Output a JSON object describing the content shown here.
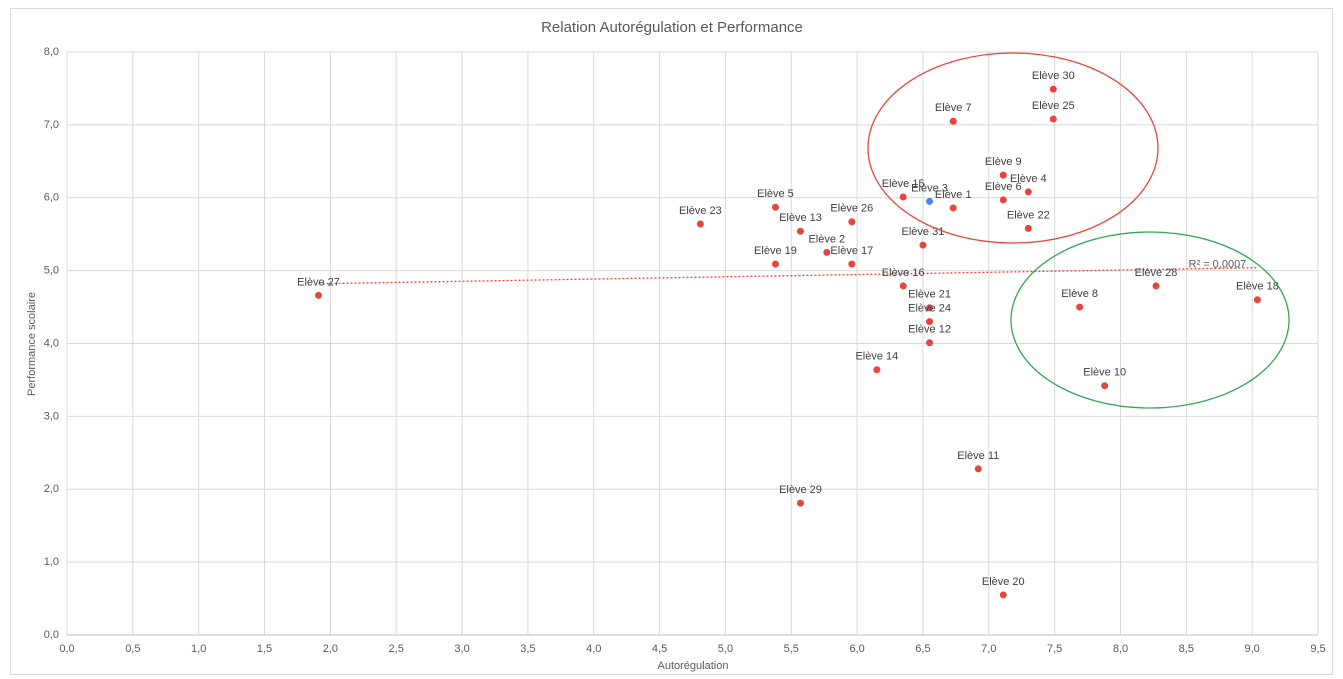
{
  "chart_data": {
    "type": "scatter",
    "title": "Relation Autorégulation et Performance",
    "x_label": "Autorégulation",
    "y_label": "Performance scolaire",
    "labels": [
      "Elève 27",
      "Elève 23",
      "Elève 5",
      "Elève 13",
      "Elève 2",
      "Elève 19",
      "Elève 17",
      "Elève 26",
      "Elève 15",
      "Elève 3",
      "Elève 1",
      "Elève 31",
      "Elève 16",
      "Elève 21",
      "Elève 24",
      "Elève 12",
      "Elève 14",
      "Elève 7",
      "Elève 9",
      "Elève 4",
      "Elève 6",
      "Elève 22",
      "Elève 30",
      "Elève 25",
      "Elève 8",
      "Elève 28",
      "Elève 18",
      "Elève 10",
      "Elève 11",
      "Elève 29",
      "Elève 20"
    ],
    "x": [
      1.91,
      4.81,
      5.38,
      5.57,
      5.77,
      5.38,
      5.96,
      5.96,
      6.35,
      6.55,
      6.73,
      6.5,
      6.35,
      6.55,
      6.55,
      6.55,
      6.15,
      6.73,
      7.11,
      7.3,
      7.11,
      7.3,
      7.49,
      7.49,
      7.69,
      8.27,
      9.04,
      7.88,
      6.92,
      5.57,
      7.11
    ],
    "values": [
      4.66,
      5.64,
      5.87,
      5.54,
      5.25,
      5.09,
      5.09,
      5.67,
      6.01,
      5.95,
      5.86,
      5.35,
      4.79,
      4.49,
      4.3,
      4.01,
      3.64,
      7.05,
      6.31,
      6.08,
      5.97,
      5.58,
      7.49,
      7.08,
      4.5,
      4.79,
      4.6,
      3.42,
      2.28,
      1.81,
      0.55
    ],
    "point_colors": [
      "#e8453c",
      "#e8453c",
      "#e8453c",
      "#e8453c",
      "#e8453c",
      "#e8453c",
      "#e8453c",
      "#e8453c",
      "#e8453c",
      "#4a86e8",
      "#e8453c",
      "#e8453c",
      "#e8453c",
      "#e8453c",
      "#e8453c",
      "#e8453c",
      "#e8453c",
      "#e8453c",
      "#e8453c",
      "#e8453c",
      "#e8453c",
      "#e8453c",
      "#e8453c",
      "#e8453c",
      "#e8453c",
      "#e8453c",
      "#e8453c",
      "#e8453c",
      "#e8453c",
      "#e8453c",
      "#e8453c"
    ],
    "trendline": {
      "x": [
        1.91,
        9.04
      ],
      "values": [
        4.82,
        5.04
      ],
      "color": "#e8453c",
      "label": "R² = 0,0007"
    },
    "xlim": [
      0,
      9.5
    ],
    "xticks": [
      {
        "value": 0,
        "label": "0,0"
      },
      {
        "value": 0.5,
        "label": "0,5"
      },
      {
        "value": 1,
        "label": "1,0"
      },
      {
        "value": 1.5,
        "label": "1,5"
      },
      {
        "value": 2,
        "label": "2,0"
      },
      {
        "value": 2.5,
        "label": "2,5"
      },
      {
        "value": 3,
        "label": "3,0"
      },
      {
        "value": 3.5,
        "label": "3,5"
      },
      {
        "value": 4,
        "label": "4,0"
      },
      {
        "value": 4.5,
        "label": "4,5"
      },
      {
        "value": 5,
        "label": "5,0"
      },
      {
        "value": 5.5,
        "label": "5,5"
      },
      {
        "value": 6,
        "label": "6,0"
      },
      {
        "value": 6.5,
        "label": "6,5"
      },
      {
        "value": 7,
        "label": "7,0"
      },
      {
        "value": 7.5,
        "label": "7,5"
      },
      {
        "value": 8,
        "label": "8,0"
      },
      {
        "value": 8.5,
        "label": "8,5"
      },
      {
        "value": 9,
        "label": "9,0"
      },
      {
        "value": 9.5,
        "label": "9,5"
      }
    ],
    "ylim": [
      0,
      8
    ],
    "yticks": [
      {
        "value": 0,
        "label": "0,0"
      },
      {
        "value": 1,
        "label": "1,0"
      },
      {
        "value": 2,
        "label": "2,0"
      },
      {
        "value": 3,
        "label": "3,0"
      },
      {
        "value": 4,
        "label": "4,0"
      },
      {
        "value": 5,
        "label": "5,0"
      },
      {
        "value": 6,
        "label": "6,0"
      },
      {
        "value": 7,
        "label": "7,0"
      },
      {
        "value": 8,
        "label": "8,0"
      }
    ],
    "grid": true
  }
}
